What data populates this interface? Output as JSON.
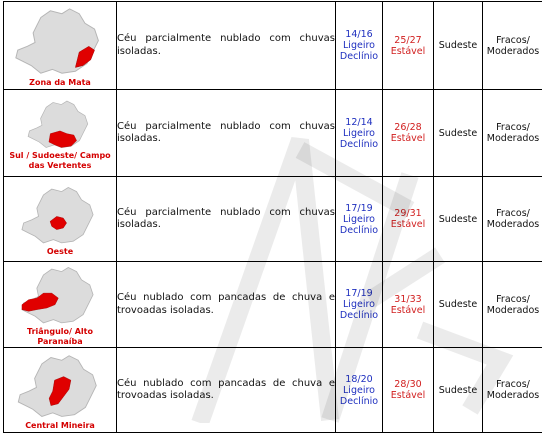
{
  "rows": [
    {
      "region": "Zona da Mata",
      "description": "Céu parcialmente nublado com chuvas isoladas.",
      "temperature": "14/16",
      "temp_trend_line1": "Ligeiro",
      "temp_trend_line2": "Declínio",
      "humidity": "25/27",
      "humidity_trend": "Estável",
      "wind_direction": "Sudeste",
      "wind_intensity_line1": "Fracos/",
      "wind_intensity_line2": "Moderados"
    },
    {
      "region": "Sul / Sudoeste/ Campo das Vertentes",
      "description": "Céu parcialmente nublado com chuvas isoladas.",
      "temperature": "12/14",
      "temp_trend_line1": "Ligeiro",
      "temp_trend_line2": "Declínio",
      "humidity": "26/28",
      "humidity_trend": "Estável",
      "wind_direction": "Sudeste",
      "wind_intensity_line1": "Fracos/",
      "wind_intensity_line2": "Moderados"
    },
    {
      "region": "Oeste",
      "description": "Céu parcialmente nublado com chuvas isoladas.",
      "temperature": "17/19",
      "temp_trend_line1": "Ligeiro",
      "temp_trend_line2": "Declínio",
      "humidity": "29/31",
      "humidity_trend": "Estável",
      "wind_direction": "Sudeste",
      "wind_intensity_line1": "Fracos/",
      "wind_intensity_line2": "Moderados"
    },
    {
      "region": "Triângulo/ Alto Paranaíba",
      "description": "Céu nublado com pancadas de chuva e trovoadas isoladas.",
      "temperature": "17/19",
      "temp_trend_line1": "Ligeiro",
      "temp_trend_line2": "Declínio",
      "humidity": "31/33",
      "humidity_trend": "Estável",
      "wind_direction": "Sudeste",
      "wind_intensity_line1": "Fracos/",
      "wind_intensity_line2": "Moderados"
    },
    {
      "region": "Central Mineira",
      "description": "Céu nublado com pancadas de chuva e trovoadas isoladas.",
      "temperature": "18/20",
      "temp_trend_line1": "Ligeiro",
      "temp_trend_line2": "Declínio",
      "humidity": "28/30",
      "humidity_trend": "Estável",
      "wind_direction": "Sudeste",
      "wind_intensity_line1": "Fracos/",
      "wind_intensity_line2": "Moderados"
    }
  ],
  "colors": {
    "map_fill": "#dcdcdc",
    "highlight": "#e00000",
    "temperature_text": "#1e2fbf",
    "humidity_text": "#d11f1f"
  },
  "icons": [
    "minas-gerais-map-icon"
  ]
}
